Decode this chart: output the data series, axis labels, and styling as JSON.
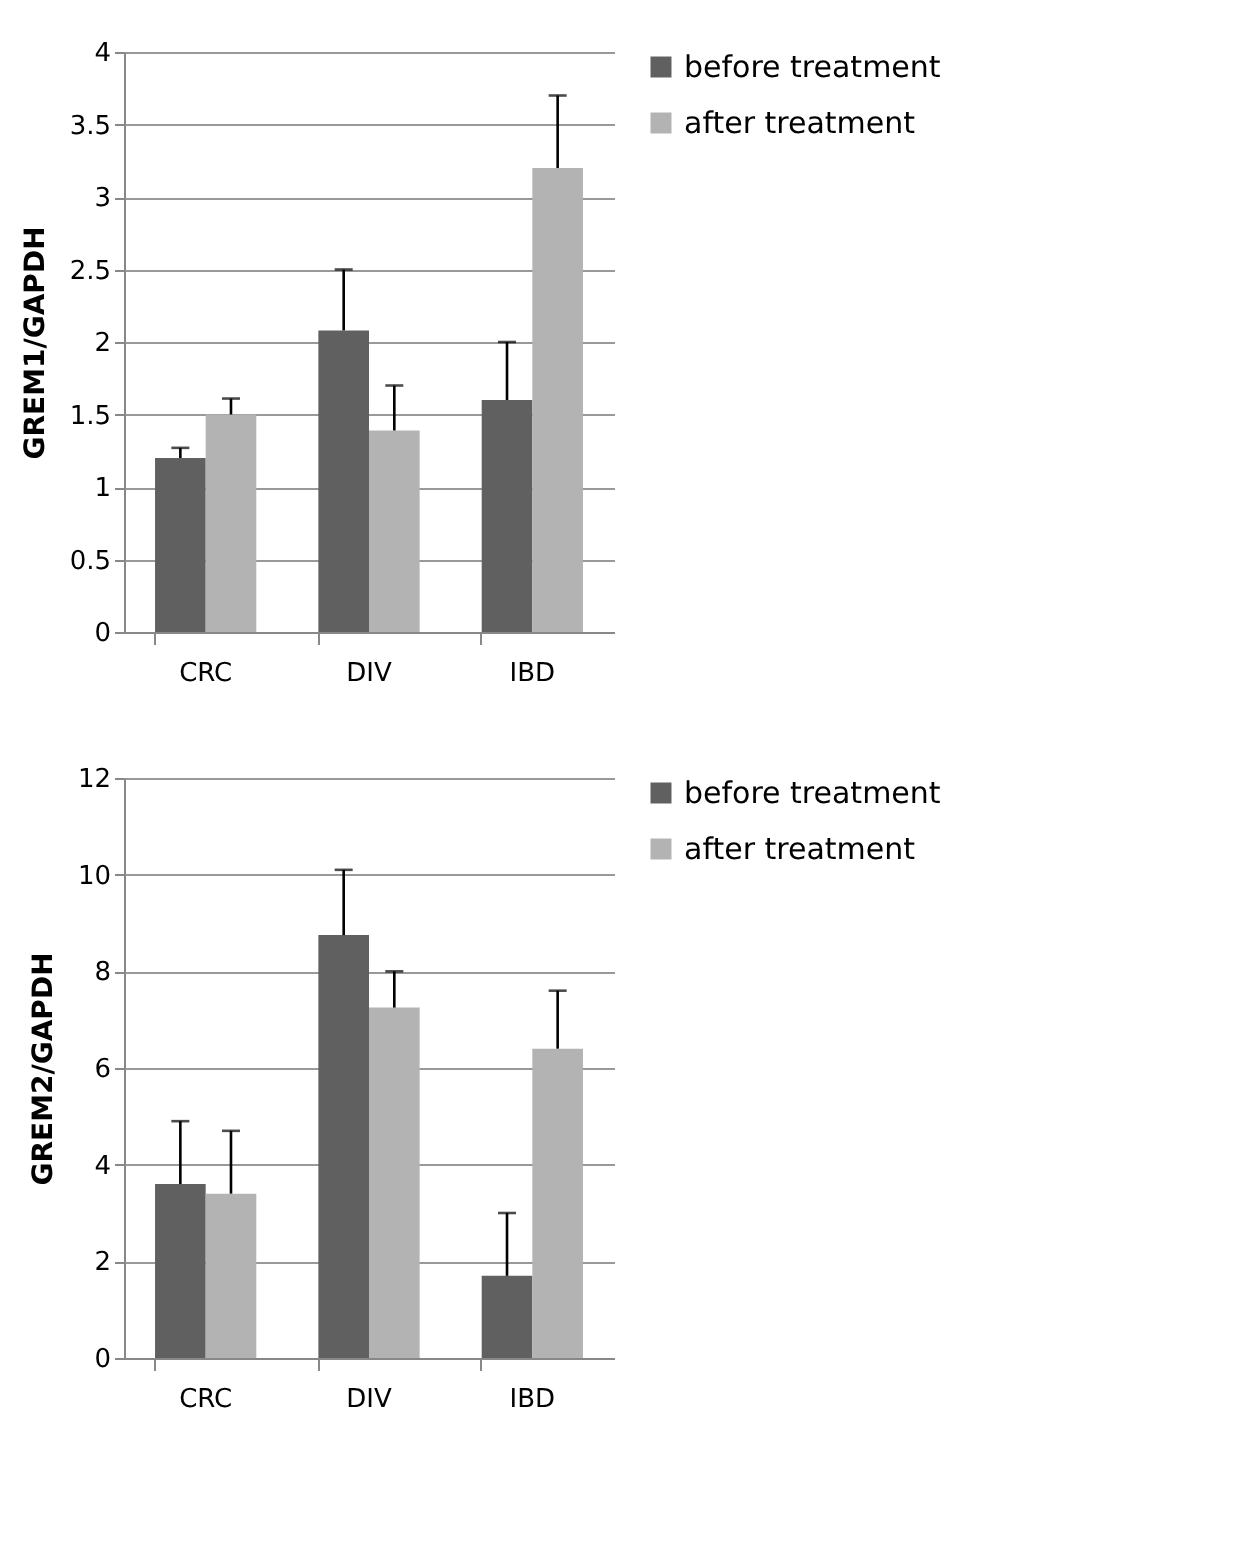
{
  "chart_data": [
    {
      "type": "bar",
      "ylabel": "GREM1/GAPDH",
      "categories": [
        "CRC",
        "DIV",
        "IBD"
      ],
      "ylim": [
        0,
        4
      ],
      "yticks": [
        0,
        0.5,
        1,
        1.5,
        2,
        2.5,
        3,
        3.5,
        4
      ],
      "grid": "y",
      "legend": "right",
      "series": [
        {
          "name": "before treatment",
          "color": "#606060",
          "values": [
            1.2,
            2.08,
            1.6
          ],
          "errors": [
            [
              1.2,
              1.27
            ],
            [
              2.08,
              2.5
            ],
            [
              1.6,
              2.0
            ]
          ]
        },
        {
          "name": "after treatment",
          "color": "#b3b3b3",
          "values": [
            1.5,
            1.39,
            3.2
          ],
          "errors": [
            [
              1.5,
              1.61
            ],
            [
              1.39,
              1.7
            ],
            [
              3.2,
              3.7
            ]
          ]
        }
      ]
    },
    {
      "type": "bar",
      "ylabel": "GREM2/GAPDH",
      "categories": [
        "CRC",
        "DIV",
        "IBD"
      ],
      "ylim": [
        0,
        12
      ],
      "yticks": [
        0,
        2,
        4,
        6,
        8,
        10,
        12
      ],
      "grid": "y",
      "legend": "right",
      "series": [
        {
          "name": "before treatment",
          "color": "#606060",
          "values": [
            3.6,
            8.75,
            1.7
          ],
          "errors": [
            [
              3.6,
              4.9
            ],
            [
              8.75,
              10.1
            ],
            [
              1.7,
              3.0
            ]
          ]
        },
        {
          "name": "after treatment",
          "color": "#b3b3b3",
          "values": [
            3.4,
            7.25,
            6.4
          ],
          "errors": [
            [
              3.4,
              4.7
            ],
            [
              7.25,
              8.0
            ],
            [
              6.4,
              7.6
            ]
          ]
        }
      ]
    }
  ]
}
